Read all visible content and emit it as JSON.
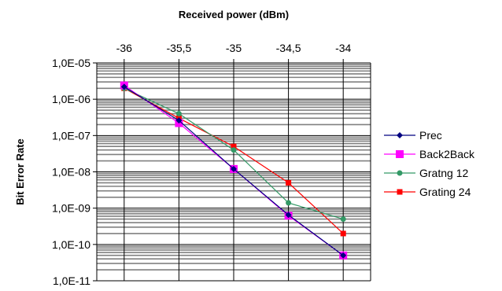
{
  "chart_data": {
    "type": "line",
    "title": "",
    "xlabel": "Received power (dBm)",
    "ylabel": "Bit Error Rate",
    "x_axis_position": "top",
    "x_ticks": [
      -36,
      -35.5,
      -35,
      -34.5,
      -34
    ],
    "x_tick_labels": [
      "-36",
      "-35,5",
      "-35",
      "-34,5",
      "-34"
    ],
    "xlim": [
      -36.25,
      -33.75
    ],
    "y_scale": "log",
    "ylim": [
      1e-11,
      1e-05
    ],
    "y_ticks": [
      1e-05,
      1e-06,
      1e-07,
      1e-08,
      1e-09,
      1e-10,
      1e-11
    ],
    "y_tick_labels": [
      "1,0E-05",
      "1,0E-06",
      "1,0E-07",
      "1,0E-08",
      "1,0E-09",
      "1,0E-10",
      "1,0E-11"
    ],
    "grid": true,
    "legend_position": "right",
    "series": [
      {
        "name": "Prec",
        "color": "#000080",
        "marker": "diamond",
        "x": [
          -36,
          -35.5,
          -35,
          -34.5,
          -34
        ],
        "y": [
          2.2e-06,
          2.6e-07,
          1.2e-08,
          6.5e-10,
          5e-11
        ]
      },
      {
        "name": "Back2Back",
        "color": "#ff00ff",
        "marker": "square",
        "x": [
          -36,
          -35.5,
          -35,
          -34.5,
          -34
        ],
        "y": [
          2.4e-06,
          2.2e-07,
          1.2e-08,
          6.2e-10,
          5e-11
        ]
      },
      {
        "name": "Gratng 12",
        "color": "#339966",
        "marker": "circle",
        "x": [
          -36,
          -35.5,
          -35,
          -34.5,
          -34
        ],
        "y": [
          2e-06,
          4e-07,
          4e-08,
          1.4e-09,
          5e-10
        ]
      },
      {
        "name": "Grating 24",
        "color": "#ff0000",
        "marker": "square",
        "x": [
          -36,
          -35.5,
          -35,
          -34.5,
          -34
        ],
        "y": [
          2e-06,
          3e-07,
          5e-08,
          5e-09,
          2e-10
        ]
      }
    ]
  }
}
